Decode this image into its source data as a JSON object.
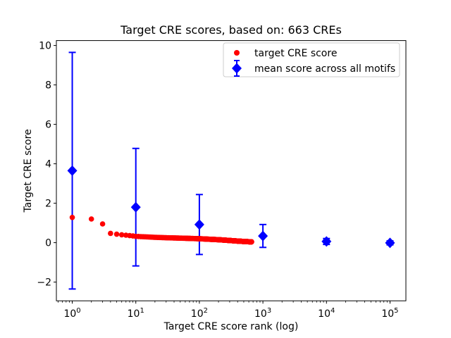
{
  "figure": {
    "background": "#ffffff",
    "text_color": "#000000",
    "frame_color": "#000000"
  },
  "chart_data": {
    "type": "scatter",
    "title": "Target CRE scores, based on: 663 CREs",
    "xlabel": "Target CRE score rank (log)",
    "ylabel": "Target CRE score",
    "xscale": "log",
    "xlim": [
      0.5623,
      177828
    ],
    "ylim": [
      -2.95,
      10.25
    ],
    "yticks": [
      -2,
      0,
      2,
      4,
      6,
      8,
      10
    ],
    "xtick_log_exponents": [
      0,
      1,
      2,
      3,
      4,
      5
    ],
    "grid": false,
    "legend_location": "upper right",
    "series": [
      {
        "name": "target CRE score",
        "type": "scatter",
        "marker": "circle",
        "color": "#ff0000",
        "n_points": 663,
        "x_is_rank_1_to_n": true,
        "anchors_rank_value": [
          [
            1,
            1.28
          ],
          [
            2,
            1.2
          ],
          [
            3,
            0.95
          ],
          [
            4,
            0.47
          ],
          [
            5,
            0.43
          ],
          [
            6,
            0.4
          ],
          [
            8,
            0.36
          ],
          [
            10,
            0.32
          ],
          [
            15,
            0.29
          ],
          [
            20,
            0.27
          ],
          [
            30,
            0.25
          ],
          [
            50,
            0.23
          ],
          [
            100,
            0.2
          ],
          [
            150,
            0.17
          ],
          [
            200,
            0.15
          ],
          [
            300,
            0.11
          ],
          [
            400,
            0.08
          ],
          [
            500,
            0.06
          ],
          [
            663,
            0.04
          ]
        ]
      },
      {
        "name": "mean score across all motifs",
        "type": "errorbar",
        "marker": "diamond",
        "color": "#0000ff",
        "x": [
          1,
          10,
          100,
          1000,
          10000,
          100000
        ],
        "y": [
          3.65,
          1.8,
          0.92,
          0.34,
          0.06,
          -0.01
        ],
        "yerr": [
          6.0,
          2.98,
          1.52,
          0.58,
          0.15,
          0.1
        ]
      }
    ]
  }
}
